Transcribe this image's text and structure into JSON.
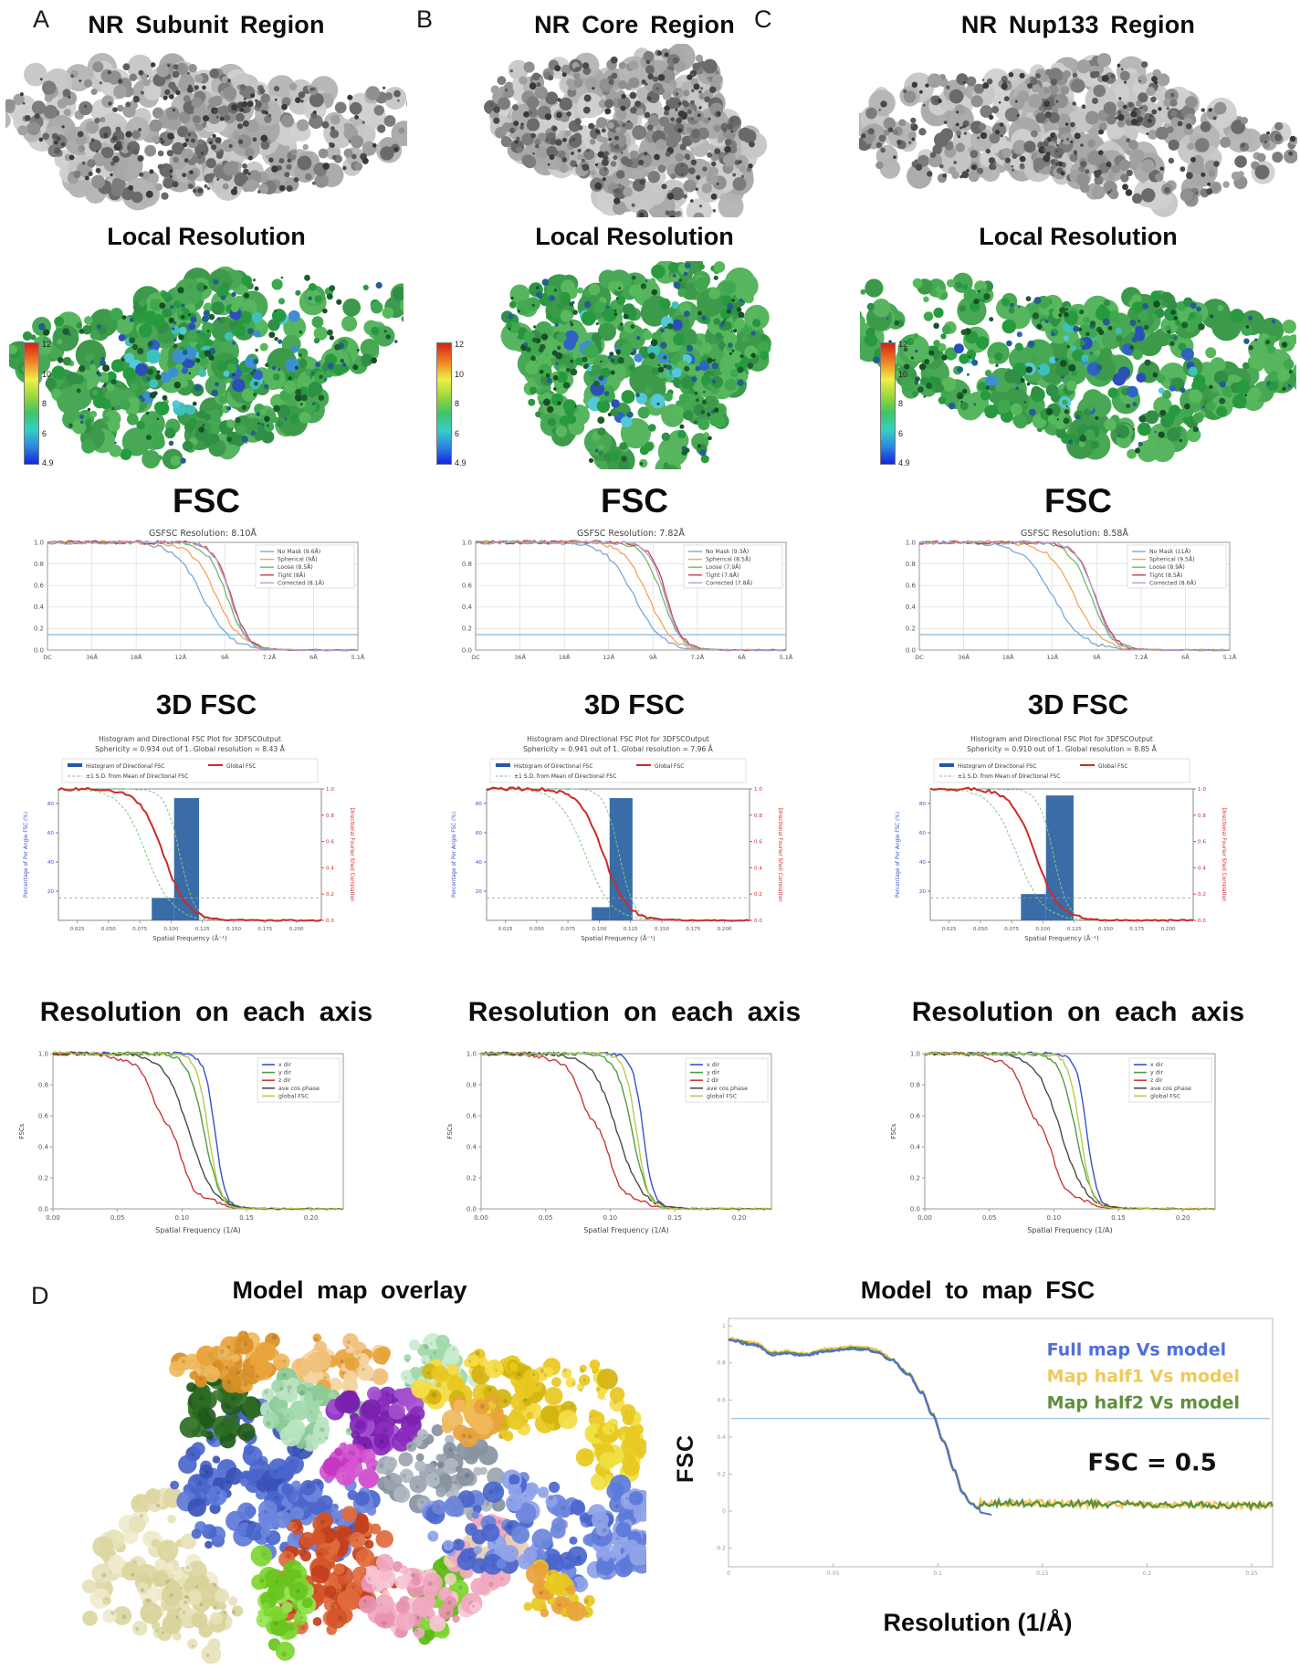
{
  "colorbar": {
    "ticks": [
      "12",
      "10",
      "8",
      "6",
      "4.9"
    ]
  },
  "fsc_axis": {
    "yticks": [
      "1.0",
      "0.8",
      "0.6",
      "0.4",
      "0.2",
      "0.0"
    ],
    "xticks": [
      "DC",
      "36Å",
      "18Å",
      "12Å",
      "9Å",
      "7.2Å",
      "6Å",
      "5.1Å"
    ],
    "threshold": 0.143
  },
  "fsc3d_axis": {
    "xlabel": "Spatial Frequency (Å⁻¹)",
    "ylabel_left": "Percentage of Per Angle FSC (%)",
    "ylabel_right": "Directional Fourier Shell Correlation",
    "xticks": [
      "0.025",
      "0.050",
      "0.075",
      "0.100",
      "0.125",
      "0.150",
      "0.175",
      "0.200"
    ],
    "yticks_left": [
      "20",
      "40",
      "60",
      "80"
    ],
    "yticks_right": [
      "0.0",
      "0.2",
      "0.4",
      "0.6",
      "0.8",
      "1.0"
    ],
    "legend": [
      {
        "label": "Histogram of Directional FSC",
        "color": "#2457a8",
        "type": "bar"
      },
      {
        "label": "Global FSC",
        "color": "#cc2a2a",
        "type": "line"
      },
      {
        "label": "±1 S.D. from Mean of Directional FSC",
        "color": "#7fc97f",
        "type": "dash"
      }
    ]
  },
  "axis_axis": {
    "ylabel": "FSCs",
    "xlabel": "Spatial Frequency (1/A)",
    "xticks": [
      "0.00",
      "0.05",
      "0.10",
      "0.15",
      "0.20"
    ],
    "yticks": [
      "1.0",
      "0.8",
      "0.6",
      "0.4",
      "0.2",
      "0.0"
    ],
    "legend": [
      {
        "label": "x dir",
        "color": "#3a50c8",
        "c": 0.558,
        "w": 0.018
      },
      {
        "label": "y dir",
        "color": "#4f9e3f",
        "c": 0.52,
        "w": 0.027
      },
      {
        "label": "z dir",
        "color": "#cc3838",
        "c": 0.4,
        "w": 0.05,
        "wig": true
      },
      {
        "label": "ave cos phase",
        "color": "#4a4a4a",
        "c": 0.468,
        "w": 0.042
      },
      {
        "label": "global FSC",
        "color": "#b8c84f",
        "c": 0.535,
        "w": 0.02
      }
    ]
  },
  "panels": [
    {
      "letter": "A",
      "region_title": "NR Subunit Region",
      "local_resolution_title": "Local Resolution",
      "fsc_section_title": "FSC",
      "fsc": {
        "title": "GSFSC Resolution: 8.10Å",
        "legend": [
          {
            "label": "No Mask (9.6Å)",
            "color": "#7aa8d8",
            "c": 0.5,
            "w": 0.045
          },
          {
            "label": "Spherical (9Å)",
            "color": "#f2a45c",
            "c": 0.545,
            "w": 0.04
          },
          {
            "label": "Loose (8.5Å)",
            "color": "#6dbb6d",
            "c": 0.578,
            "w": 0.032
          },
          {
            "label": "Tight (8Å)",
            "color": "#c44545",
            "c": 0.592,
            "w": 0.028
          },
          {
            "label": "Corrected (8.1Å)",
            "color": "#b39dd8",
            "c": 0.588,
            "w": 0.027
          }
        ]
      },
      "fsc3d_section_title": "3D FSC",
      "fsc3d": {
        "title_line1": "Histogram and Directional FSC Plot for 3DFSCOutput",
        "title_line2": "Sphericity = 0.934 out of 1. Global resolution = 8.43 Å",
        "bars": [
          {
            "x0": 0.355,
            "x1": 0.44,
            "h": 0.17
          },
          {
            "x0": 0.44,
            "x1": 0.535,
            "h": 0.93
          }
        ],
        "red_c": 0.4,
        "sd_lo": 0.335,
        "sd_hi": 0.462
      },
      "axis_section_title": "Resolution on each axis"
    },
    {
      "letter": "B",
      "region_title": "NR Core Region",
      "local_resolution_title": "Local Resolution",
      "fsc_section_title": "FSC",
      "fsc": {
        "title": "GSFSC Resolution: 7.82Å",
        "legend": [
          {
            "label": "No Mask (9.3Å)",
            "color": "#7aa8d8",
            "c": 0.51,
            "w": 0.045
          },
          {
            "label": "Spherical (8.5Å)",
            "color": "#f2a45c",
            "c": 0.555,
            "w": 0.038
          },
          {
            "label": "Loose (7.9Å)",
            "color": "#6dbb6d",
            "c": 0.6,
            "w": 0.03
          },
          {
            "label": "Tight (7.8Å)",
            "color": "#c44545",
            "c": 0.615,
            "w": 0.026
          },
          {
            "label": "Corrected (7.8Å)",
            "color": "#b39dd8",
            "c": 0.61,
            "w": 0.026
          }
        ]
      },
      "fsc3d_section_title": "3D FSC",
      "fsc3d": {
        "title_line1": "Histogram and Directional FSC Plot for 3DFSCOutput",
        "title_line2": "Sphericity = 0.941 out of 1. Global resolution = 7.96 Å",
        "bars": [
          {
            "x0": 0.4,
            "x1": 0.468,
            "h": 0.1
          },
          {
            "x0": 0.468,
            "x1": 0.555,
            "h": 0.93
          }
        ],
        "red_c": 0.445,
        "sd_lo": 0.375,
        "sd_hi": 0.505
      },
      "axis_section_title": "Resolution on each axis"
    },
    {
      "letter": "C",
      "region_title": "NR Nup133 Region",
      "local_resolution_title": "Local Resolution",
      "fsc_section_title": "FSC",
      "fsc": {
        "title": "GSFSC Resolution: 8.58Å",
        "legend": [
          {
            "label": "No Mask (11Å)",
            "color": "#7aa8d8",
            "c": 0.43,
            "w": 0.05
          },
          {
            "label": "Spherical (9.5Å)",
            "color": "#f2a45c",
            "c": 0.5,
            "w": 0.042
          },
          {
            "label": "Loose (8.9Å)",
            "color": "#6dbb6d",
            "c": 0.552,
            "w": 0.034
          },
          {
            "label": "Tight (8.5Å)",
            "color": "#c44545",
            "c": 0.568,
            "w": 0.03
          },
          {
            "label": "Corrected (8.6Å)",
            "color": "#b39dd8",
            "c": 0.564,
            "w": 0.029
          }
        ]
      },
      "fsc3d_section_title": "3D FSC",
      "fsc3d": {
        "title_line1": "Histogram and Directional FSC Plot for 3DFSCOutput",
        "title_line2": "Sphericity = 0.910 out of 1. Global resolution = 8.85 Å",
        "bars": [
          {
            "x0": 0.345,
            "x1": 0.44,
            "h": 0.2
          },
          {
            "x0": 0.44,
            "x1": 0.545,
            "h": 0.95
          }
        ],
        "red_c": 0.4,
        "sd_lo": 0.33,
        "sd_hi": 0.468
      },
      "axis_section_title": "Resolution on each axis"
    }
  ],
  "panelD": {
    "letter": "D",
    "overlay_title": "Model map overlay",
    "fsc_title": "Model to map FSC",
    "legend": [
      {
        "label": "Full map Vs model",
        "color": "#4f6fd8"
      },
      {
        "label": "Map half1 Vs model",
        "color": "#f0c95a"
      },
      {
        "label": "Map half2 Vs model",
        "color": "#5f8f3e"
      }
    ],
    "annotation": "FSC = 0.5",
    "ylabel": "FSC",
    "xlabel": "Resolution (1/Å)",
    "threshold": 0.5,
    "xticks": [
      "0",
      "0.05",
      "0.1",
      "0.15",
      "0.2",
      "0.25"
    ],
    "yticks": [
      "1",
      "0.8",
      "0.6",
      "0.4",
      "0.2",
      "0",
      "-0.2"
    ],
    "curve_ctrl": [
      [
        0,
        0.92
      ],
      [
        0.05,
        0.895
      ],
      [
        0.08,
        0.845
      ],
      [
        0.11,
        0.85
      ],
      [
        0.14,
        0.838
      ],
      [
        0.18,
        0.862
      ],
      [
        0.225,
        0.875
      ],
      [
        0.25,
        0.872
      ],
      [
        0.27,
        0.86
      ],
      [
        0.3,
        0.815
      ],
      [
        0.33,
        0.74
      ],
      [
        0.355,
        0.64
      ],
      [
        0.375,
        0.52
      ],
      [
        0.395,
        0.38
      ],
      [
        0.415,
        0.22
      ],
      [
        0.43,
        0.1
      ],
      [
        0.445,
        0.04
      ],
      [
        0.46,
        0.015
      ]
    ]
  }
}
